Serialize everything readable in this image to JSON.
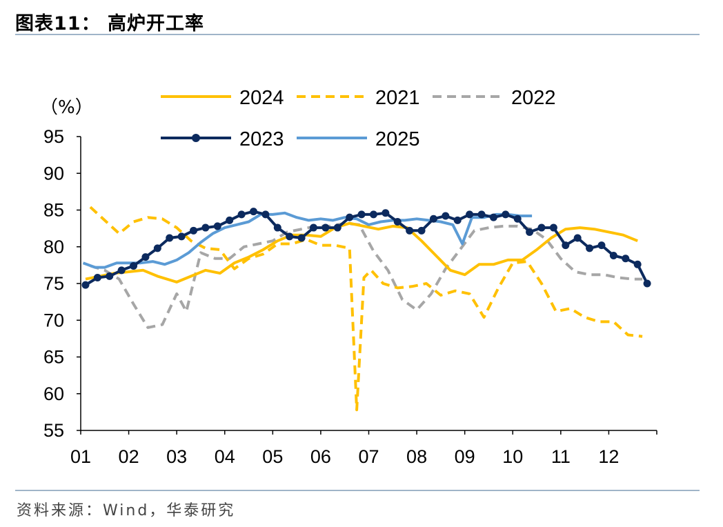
{
  "title": "图表11：  高炉开工率",
  "source": "资料来源：Wind，华泰研究",
  "chart_data": {
    "type": "line",
    "unit_label": "（%）",
    "x_ticks": [
      "01",
      "02",
      "03",
      "04",
      "05",
      "06",
      "07",
      "08",
      "09",
      "10",
      "11",
      "12"
    ],
    "y_ticks": [
      "95",
      "90",
      "85",
      "80",
      "75",
      "70",
      "65",
      "60",
      "55"
    ],
    "ylim": [
      55,
      95
    ],
    "xlim": [
      1,
      13
    ],
    "legend_position": "top",
    "series": [
      {
        "name": "2024",
        "color": "#ffc000",
        "style": "solid",
        "markers": false,
        "x": [
          1.1,
          1.4,
          1.7,
          2.0,
          2.3,
          2.6,
          3.0,
          3.3,
          3.6,
          3.9,
          4.2,
          4.5,
          4.8,
          5.1,
          5.4,
          5.7,
          6.0,
          6.3,
          6.6,
          6.9,
          7.2,
          7.5,
          7.8,
          8.1,
          8.4,
          8.7,
          9.0,
          9.3,
          9.6,
          9.9,
          10.2,
          10.5,
          10.8,
          11.1,
          11.4,
          11.7,
          12.0,
          12.3,
          12.6
        ],
        "y": [
          75.6,
          76.0,
          76.4,
          76.6,
          76.8,
          76.0,
          75.2,
          76.0,
          76.8,
          76.4,
          77.8,
          78.6,
          79.6,
          80.8,
          81.6,
          81.6,
          81.4,
          82.6,
          83.2,
          82.8,
          82.4,
          82.8,
          82.6,
          80.8,
          78.8,
          76.8,
          76.2,
          77.6,
          77.6,
          78.2,
          78.2,
          79.6,
          81.2,
          82.4,
          82.6,
          82.4,
          82.0,
          81.6,
          80.8
        ]
      },
      {
        "name": "2021",
        "color": "#ffc000",
        "style": "dashed",
        "markers": false,
        "x": [
          1.2,
          1.5,
          1.8,
          2.1,
          2.4,
          2.7,
          3.0,
          3.3,
          3.6,
          3.9,
          4.2,
          4.5,
          4.8,
          5.1,
          5.4,
          5.7,
          6.0,
          6.3,
          6.6,
          6.75,
          6.9,
          7.05,
          7.3,
          7.6,
          7.9,
          8.2,
          8.5,
          8.8,
          9.1,
          9.4,
          9.7,
          10.0,
          10.3,
          10.6,
          10.9,
          11.2,
          11.5,
          11.8,
          12.1,
          12.4,
          12.7
        ],
        "y": [
          85.4,
          83.6,
          81.8,
          83.4,
          84.0,
          83.8,
          82.6,
          80.8,
          79.8,
          79.6,
          77.0,
          78.4,
          79.0,
          80.4,
          80.4,
          81.0,
          80.2,
          80.2,
          79.8,
          57.8,
          75.8,
          76.8,
          75.0,
          74.4,
          74.6,
          75.0,
          73.4,
          74.0,
          73.6,
          70.4,
          74.4,
          77.8,
          78.0,
          75.0,
          71.2,
          71.6,
          70.4,
          69.8,
          69.8,
          68.0,
          67.8
        ]
      },
      {
        "name": "2022",
        "color": "#a6a6a6",
        "style": "dashed",
        "markers": false,
        "x": [
          1.2,
          1.5,
          1.8,
          2.1,
          2.4,
          2.7,
          3.0,
          3.2,
          3.5,
          3.8,
          4.1,
          4.4,
          4.7,
          5.0,
          5.3,
          5.6,
          5.9,
          6.2,
          6.5,
          6.8,
          7.1,
          7.4,
          7.7,
          8.0,
          8.3,
          8.6,
          8.9,
          9.2,
          9.5,
          9.8,
          10.1,
          10.4,
          10.7,
          11.0,
          11.3,
          11.6,
          11.9,
          12.2,
          12.5,
          12.7
        ],
        "y": [
          77.4,
          76.8,
          75.6,
          72.2,
          69.0,
          69.4,
          73.6,
          71.2,
          79.2,
          78.4,
          78.4,
          80.0,
          80.4,
          80.8,
          82.0,
          82.4,
          82.8,
          82.8,
          83.2,
          83.0,
          79.4,
          76.8,
          72.8,
          71.4,
          73.6,
          77.0,
          79.6,
          82.2,
          82.6,
          82.8,
          82.8,
          82.4,
          81.0,
          78.4,
          76.6,
          76.2,
          76.2,
          75.8,
          75.6,
          75.6
        ]
      },
      {
        "name": "2023",
        "color": "#0c2a5e",
        "style": "solid",
        "markers": true,
        "x": [
          1.1,
          1.35,
          1.6,
          1.85,
          2.1,
          2.35,
          2.6,
          2.85,
          3.1,
          3.35,
          3.6,
          3.85,
          4.1,
          4.35,
          4.6,
          4.85,
          5.1,
          5.35,
          5.6,
          5.85,
          6.1,
          6.35,
          6.6,
          6.85,
          7.1,
          7.35,
          7.6,
          7.85,
          8.1,
          8.35,
          8.6,
          8.85,
          9.1,
          9.35,
          9.6,
          9.85,
          10.1,
          10.35,
          10.6,
          10.85,
          11.1,
          11.35,
          11.6,
          11.85,
          12.1,
          12.35,
          12.6,
          12.8
        ],
        "y": [
          74.8,
          75.8,
          76.0,
          76.8,
          77.4,
          78.6,
          79.8,
          81.2,
          81.4,
          82.2,
          82.6,
          82.8,
          83.6,
          84.4,
          84.8,
          84.4,
          82.6,
          81.4,
          81.2,
          82.6,
          82.6,
          82.6,
          84.0,
          84.4,
          84.4,
          84.6,
          83.4,
          82.2,
          82.2,
          83.8,
          84.2,
          83.6,
          84.4,
          84.4,
          84.0,
          84.4,
          83.8,
          82.0,
          82.6,
          82.6,
          80.2,
          81.2,
          79.8,
          80.2,
          78.8,
          78.4,
          77.6,
          75.0
        ]
      },
      {
        "name": "2025",
        "color": "#5b9bd5",
        "style": "solid",
        "markers": false,
        "x": [
          1.05,
          1.3,
          1.5,
          1.75,
          2.0,
          2.25,
          2.5,
          2.75,
          3.0,
          3.25,
          3.5,
          3.75,
          4.0,
          4.25,
          4.5,
          4.75,
          5.0,
          5.25,
          5.5,
          5.75,
          6.0,
          6.25,
          6.5,
          6.75,
          7.0,
          7.25,
          7.5,
          7.75,
          8.0,
          8.25,
          8.5,
          8.75,
          8.95,
          9.15,
          9.4,
          9.65,
          9.9,
          10.15,
          10.4
        ],
        "y": [
          77.8,
          77.2,
          77.2,
          77.8,
          77.8,
          77.8,
          78.0,
          77.6,
          78.2,
          79.2,
          80.6,
          81.8,
          82.6,
          83.0,
          83.4,
          84.4,
          84.4,
          84.6,
          84.0,
          83.6,
          83.8,
          83.6,
          84.0,
          83.8,
          83.0,
          83.4,
          83.6,
          83.6,
          83.8,
          83.6,
          83.4,
          83.0,
          80.4,
          84.0,
          84.0,
          84.4,
          84.4,
          84.2,
          84.2
        ]
      }
    ]
  }
}
